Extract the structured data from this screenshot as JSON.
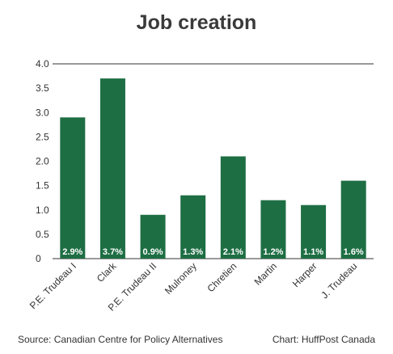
{
  "title": "Job creation",
  "footer": {
    "source": "Source: Canadian Centre for Policy Alternatives",
    "credit": "Chart: HuffPost Canada"
  },
  "colors": {
    "bar": "#1e6e44",
    "label_text": "#ffffff",
    "axis": "#333333"
  },
  "chart_data": {
    "type": "bar",
    "title": "Job creation",
    "xlabel": "",
    "ylabel": "",
    "categories": [
      "P.E. Trudeau I",
      "Clark",
      "P.E. Trudeau II",
      "Mulroney",
      "Chretien",
      "Martin",
      "Harper",
      "J. Trudeau"
    ],
    "values": [
      2.9,
      3.7,
      0.9,
      1.3,
      2.1,
      1.2,
      1.1,
      1.6
    ],
    "data_labels": [
      "2.9%",
      "3.7%",
      "0.9%",
      "1.3%",
      "2.1%",
      "1.2%",
      "1.1%",
      "1.6%"
    ],
    "yticks": [
      "0",
      "0.5",
      "1.0",
      "1.5",
      "2.0",
      "2.5",
      "3.0",
      "3.5",
      "4.0"
    ],
    "ylim": [
      0,
      4
    ],
    "grid": false,
    "legend": "none"
  }
}
